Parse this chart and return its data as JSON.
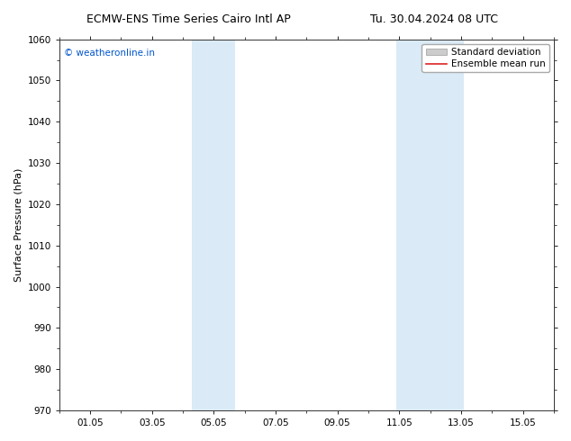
{
  "title_left": "ECMW-ENS Time Series Cairo Intl AP",
  "title_right": "Tu. 30.04.2024 08 UTC",
  "ylabel": "Surface Pressure (hPa)",
  "ylim": [
    970,
    1060
  ],
  "yticks": [
    970,
    980,
    990,
    1000,
    1010,
    1020,
    1030,
    1040,
    1050,
    1060
  ],
  "xtick_labels": [
    "01.05",
    "03.05",
    "05.05",
    "07.05",
    "09.05",
    "11.05",
    "13.05",
    "15.05"
  ],
  "xtick_positions": [
    1,
    3,
    5,
    7,
    9,
    11,
    13,
    15
  ],
  "xlim": [
    0.0,
    16.0
  ],
  "shaded_bands": [
    {
      "x_start": 4.3,
      "x_end": 5.7
    },
    {
      "x_start": 10.9,
      "x_end": 13.1
    }
  ],
  "band_color": "#daeaf6",
  "watermark_text": "© weatheronline.in",
  "watermark_color": "#0055cc",
  "watermark_fontsize": 7.5,
  "legend_label_std": "Standard deviation",
  "legend_label_ens": "Ensemble mean run",
  "std_patch_color": "#cccccc",
  "ens_line_color": "#dd2222",
  "title_fontsize": 9,
  "axis_label_fontsize": 8,
  "tick_fontsize": 7.5,
  "background_color": "#ffffff",
  "spine_color": "#333333"
}
